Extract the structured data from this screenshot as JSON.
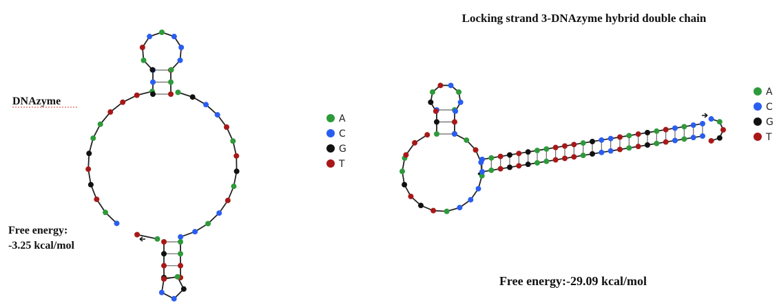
{
  "left": {
    "label": "DNAzyme",
    "energy_title": "Free energy:",
    "energy_value": "-3.25 kcal/mol"
  },
  "right": {
    "title": "Locking strand 3-DNAzyme hybrid double chain",
    "energy": "Free energy:-29.09 kcal/mol"
  },
  "legend_left": [
    "A",
    "C",
    "G",
    "T"
  ],
  "legend_right": [
    "A",
    "C",
    "G",
    "T"
  ]
}
